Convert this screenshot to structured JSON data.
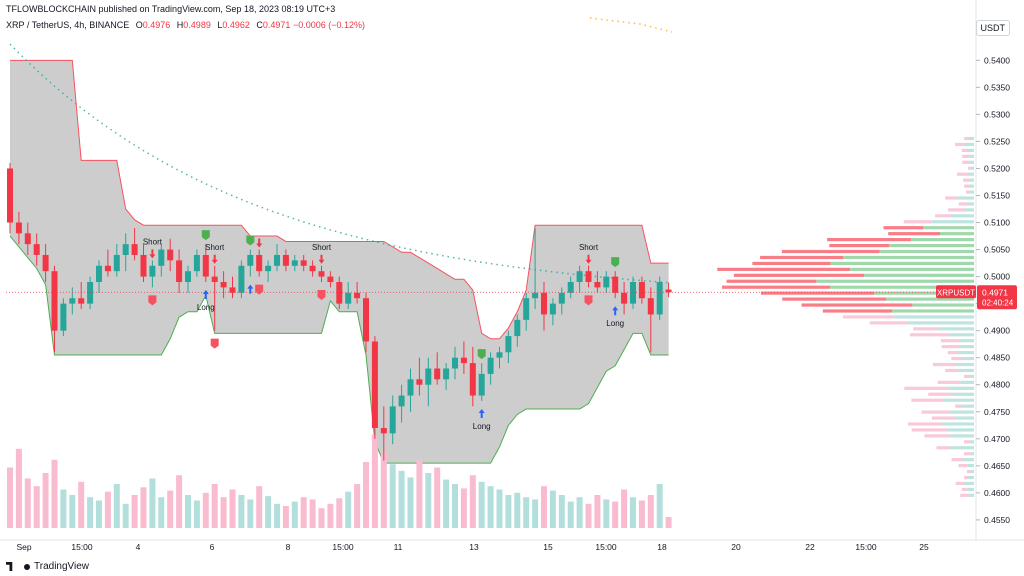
{
  "header": {
    "publisher": "TFLOWBLOCKCHAIN published on TradingView.com, Sep 18, 2023 08:19 UTC+3",
    "symbol": "XRP / TetherUS, 4h, BINANCE",
    "open_label": "O",
    "open": "0.4976",
    "high_label": "H",
    "high": "0.4989",
    "low_label": "L",
    "low": "0.4962",
    "close_label": "C",
    "close": "0.4971",
    "change": "−0.0006 (−0.12%)"
  },
  "currency": "USDT",
  "brand": "TradingView",
  "price_tag": {
    "symbol": "XRPUSDT",
    "price": "0.4971",
    "countdown": "02:40:24"
  },
  "signal_labels": {
    "short": "Short",
    "long": "Long"
  },
  "colors": {
    "up": "#26a69a",
    "down": "#f23645",
    "band": "#c8c8c8",
    "vol_up": "#b2dfdb",
    "vol_down": "#f8bbd0"
  },
  "chart_data": {
    "type": "candlestick",
    "y_ticks": [
      "0.5400",
      "0.5350",
      "0.5300",
      "0.5250",
      "0.5200",
      "0.5150",
      "0.5100",
      "0.5050",
      "0.5000",
      "0.4950",
      "0.4900",
      "0.4850",
      "0.4800",
      "0.4750",
      "0.4700",
      "0.4650",
      "0.4600",
      "0.4550"
    ],
    "ylim": [
      0.4535,
      0.5445
    ],
    "x_ticks": [
      "Sep",
      "15:00",
      "4",
      "6",
      "8",
      "15:00",
      "11",
      "13",
      "15",
      "15:00",
      "18",
      "20",
      "22",
      "15:00",
      "25"
    ],
    "last_price": 0.4971,
    "candles": [
      [
        0.52,
        0.521,
        0.508,
        0.51
      ],
      [
        0.51,
        0.512,
        0.506,
        0.508
      ],
      [
        0.508,
        0.51,
        0.504,
        0.506
      ],
      [
        0.506,
        0.508,
        0.502,
        0.504
      ],
      [
        0.504,
        0.506,
        0.499,
        0.501
      ],
      [
        0.501,
        0.502,
        0.486,
        0.49
      ],
      [
        0.49,
        0.496,
        0.489,
        0.495
      ],
      [
        0.495,
        0.498,
        0.493,
        0.496
      ],
      [
        0.496,
        0.499,
        0.494,
        0.495
      ],
      [
        0.495,
        0.5,
        0.494,
        0.499
      ],
      [
        0.499,
        0.503,
        0.497,
        0.502
      ],
      [
        0.502,
        0.505,
        0.5,
        0.501
      ],
      [
        0.501,
        0.506,
        0.5,
        0.504
      ],
      [
        0.504,
        0.508,
        0.501,
        0.506
      ],
      [
        0.506,
        0.509,
        0.503,
        0.504
      ],
      [
        0.504,
        0.506,
        0.499,
        0.5
      ],
      [
        0.5,
        0.503,
        0.498,
        0.502
      ],
      [
        0.502,
        0.506,
        0.5,
        0.505
      ],
      [
        0.505,
        0.507,
        0.501,
        0.503
      ],
      [
        0.503,
        0.505,
        0.497,
        0.499
      ],
      [
        0.499,
        0.502,
        0.497,
        0.501
      ],
      [
        0.501,
        0.505,
        0.5,
        0.504
      ],
      [
        0.504,
        0.506,
        0.499,
        0.5
      ],
      [
        0.5,
        0.502,
        0.49,
        0.499
      ],
      [
        0.499,
        0.501,
        0.496,
        0.498
      ],
      [
        0.498,
        0.5,
        0.496,
        0.497
      ],
      [
        0.497,
        0.503,
        0.496,
        0.502
      ],
      [
        0.502,
        0.505,
        0.5,
        0.504
      ],
      [
        0.504,
        0.505,
        0.5,
        0.501
      ],
      [
        0.501,
        0.503,
        0.499,
        0.502
      ],
      [
        0.502,
        0.506,
        0.501,
        0.504
      ],
      [
        0.504,
        0.505,
        0.501,
        0.502
      ],
      [
        0.502,
        0.504,
        0.501,
        0.503
      ],
      [
        0.503,
        0.504,
        0.501,
        0.502
      ],
      [
        0.502,
        0.503,
        0.5,
        0.501
      ],
      [
        0.501,
        0.502,
        0.499,
        0.5
      ],
      [
        0.5,
        0.501,
        0.498,
        0.499
      ],
      [
        0.499,
        0.5,
        0.494,
        0.495
      ],
      [
        0.495,
        0.499,
        0.494,
        0.497
      ],
      [
        0.497,
        0.499,
        0.495,
        0.496
      ],
      [
        0.496,
        0.497,
        0.486,
        0.488
      ],
      [
        0.488,
        0.489,
        0.47,
        0.472
      ],
      [
        0.472,
        0.476,
        0.466,
        0.471
      ],
      [
        0.471,
        0.478,
        0.469,
        0.476
      ],
      [
        0.476,
        0.48,
        0.473,
        0.478
      ],
      [
        0.478,
        0.483,
        0.475,
        0.481
      ],
      [
        0.481,
        0.485,
        0.478,
        0.48
      ],
      [
        0.48,
        0.485,
        0.476,
        0.483
      ],
      [
        0.483,
        0.486,
        0.48,
        0.481
      ],
      [
        0.481,
        0.484,
        0.479,
        0.483
      ],
      [
        0.483,
        0.487,
        0.481,
        0.485
      ],
      [
        0.485,
        0.488,
        0.482,
        0.484
      ],
      [
        0.484,
        0.487,
        0.476,
        0.478
      ],
      [
        0.478,
        0.484,
        0.477,
        0.482
      ],
      [
        0.482,
        0.486,
        0.48,
        0.485
      ],
      [
        0.485,
        0.487,
        0.483,
        0.486
      ],
      [
        0.486,
        0.49,
        0.484,
        0.489
      ],
      [
        0.489,
        0.493,
        0.487,
        0.492
      ],
      [
        0.492,
        0.497,
        0.49,
        0.496
      ],
      [
        0.496,
        0.509,
        0.494,
        0.497
      ],
      [
        0.497,
        0.499,
        0.49,
        0.493
      ],
      [
        0.493,
        0.496,
        0.491,
        0.495
      ],
      [
        0.495,
        0.498,
        0.493,
        0.497
      ],
      [
        0.497,
        0.5,
        0.496,
        0.499
      ],
      [
        0.499,
        0.502,
        0.497,
        0.501
      ],
      [
        0.501,
        0.502,
        0.498,
        0.499
      ],
      [
        0.499,
        0.501,
        0.497,
        0.498
      ],
      [
        0.498,
        0.501,
        0.497,
        0.5
      ],
      [
        0.5,
        0.501,
        0.496,
        0.497
      ],
      [
        0.497,
        0.499,
        0.493,
        0.495
      ],
      [
        0.495,
        0.5,
        0.494,
        0.499
      ],
      [
        0.499,
        0.5,
        0.495,
        0.496
      ],
      [
        0.496,
        0.498,
        0.486,
        0.493
      ],
      [
        0.493,
        0.5,
        0.492,
        0.499
      ],
      [
        0.4976,
        0.4989,
        0.4962,
        0.4971
      ]
    ],
    "volume": [
      0.55,
      0.72,
      0.45,
      0.38,
      0.5,
      0.62,
      0.35,
      0.3,
      0.42,
      0.28,
      0.25,
      0.33,
      0.4,
      0.22,
      0.3,
      0.37,
      0.45,
      0.28,
      0.34,
      0.48,
      0.3,
      0.25,
      0.32,
      0.4,
      0.28,
      0.35,
      0.3,
      0.26,
      0.38,
      0.29,
      0.22,
      0.2,
      0.24,
      0.28,
      0.26,
      0.18,
      0.22,
      0.27,
      0.33,
      0.4,
      0.6,
      0.85,
      0.7,
      0.58,
      0.52,
      0.46,
      0.62,
      0.5,
      0.55,
      0.44,
      0.4,
      0.36,
      0.48,
      0.42,
      0.38,
      0.35,
      0.3,
      0.32,
      0.28,
      0.26,
      0.38,
      0.34,
      0.3,
      0.24,
      0.28,
      0.22,
      0.3,
      0.26,
      0.24,
      0.35,
      0.28,
      0.25,
      0.3,
      0.4,
      0.1
    ],
    "signals_short": [
      {
        "bar": 16,
        "labeled": true
      },
      {
        "bar": 23,
        "labeled": true
      },
      {
        "bar": 28,
        "labeled": false
      },
      {
        "bar": 35,
        "labeled": true
      },
      {
        "bar": 65,
        "labeled": true
      }
    ],
    "signals_long": [
      {
        "bar": 22,
        "labeled": true
      },
      {
        "bar": 27,
        "labeled": false
      },
      {
        "bar": 53,
        "labeled": true
      },
      {
        "bar": 68,
        "labeled": true
      }
    ]
  }
}
